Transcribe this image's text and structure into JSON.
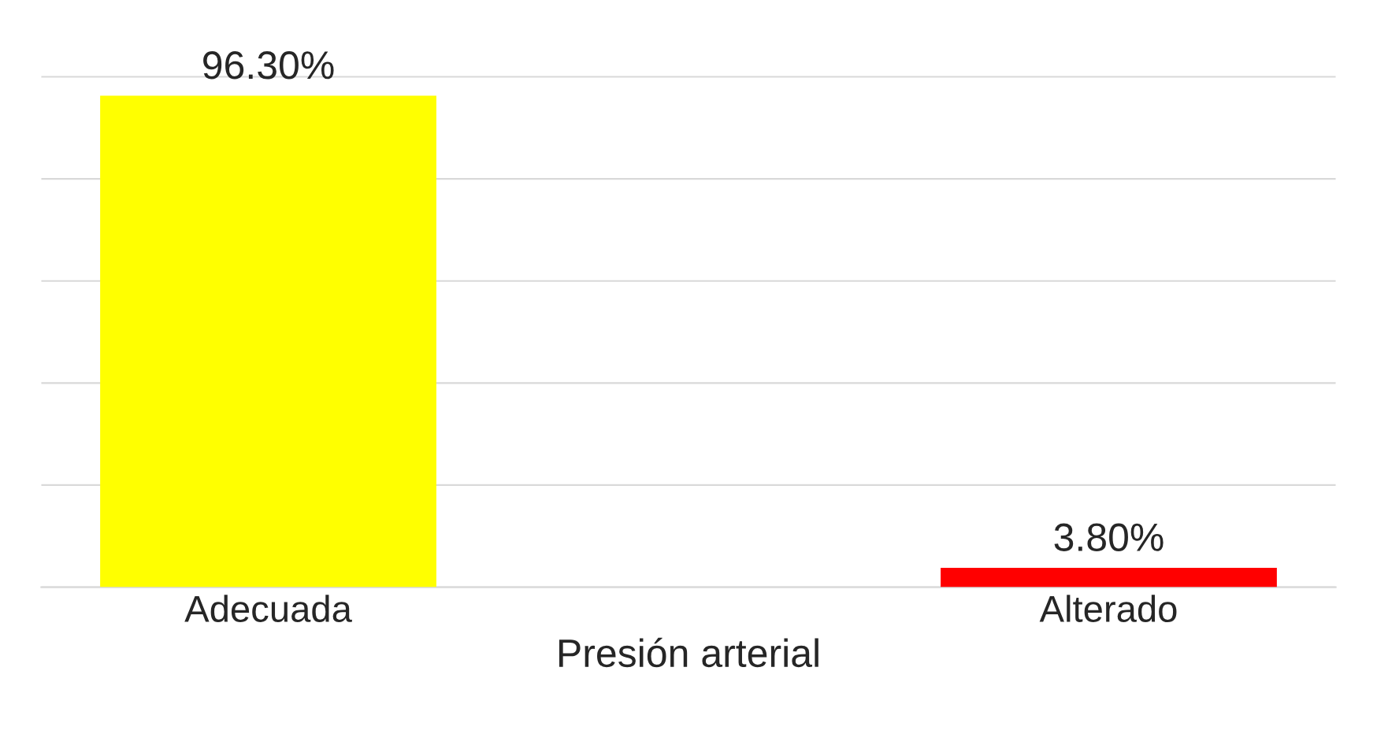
{
  "chart_data": {
    "type": "bar",
    "xlabel": "Presión arterial",
    "categories": [
      "Adecuada",
      "Alterado"
    ],
    "values": [
      96.3,
      3.8
    ],
    "colors": [
      "#ffff00",
      "#ff0000"
    ],
    "value_labels": [
      "96.30%",
      "3.80%"
    ],
    "grid": "y",
    "tick_labels": "x"
  }
}
